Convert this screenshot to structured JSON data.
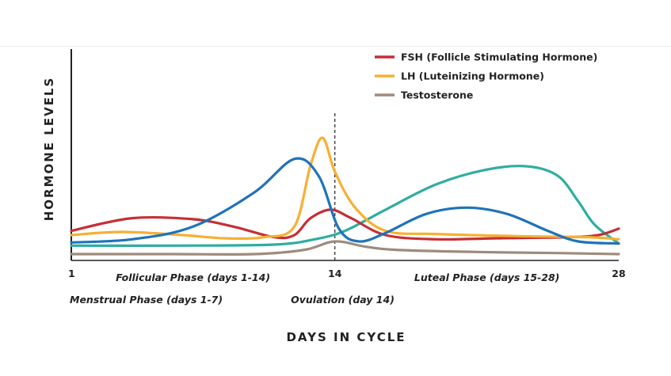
{
  "chart_data": {
    "type": "line",
    "xlabel": "DAYS IN CYCLE",
    "ylabel": "HORMONE LEVELS",
    "xlim": [
      1,
      28
    ],
    "ylim": [
      0,
      100
    ],
    "x_ticks": [
      "1",
      "14",
      "28"
    ],
    "ovulation_day": 14,
    "legend_position": "top-right",
    "phase_labels": [
      {
        "text": "Follicular Phase (days 1-14)",
        "x": 7.0,
        "row": 1
      },
      {
        "text": "Luteal Phase (days 15-28)",
        "x": 21.5,
        "row": 1
      },
      {
        "text": "Menstrual Phase (days 1-7)",
        "x": 1.0,
        "row": 2
      },
      {
        "text": "Ovulation (day 14)",
        "x": 13.0,
        "row": 2
      }
    ],
    "series": [
      {
        "name": "FSH (Follicle Stimulating Hormone)",
        "color": "#c62f36",
        "points": [
          [
            1,
            14
          ],
          [
            4,
            20
          ],
          [
            7,
            19.5
          ],
          [
            9,
            16
          ],
          [
            11,
            11
          ],
          [
            12,
            12
          ],
          [
            12.8,
            20
          ],
          [
            13.8,
            24
          ],
          [
            14.8,
            20
          ],
          [
            16.5,
            12
          ],
          [
            19,
            10
          ],
          [
            22,
            10.5
          ],
          [
            25.5,
            11
          ],
          [
            27,
            12
          ],
          [
            28,
            15
          ]
        ]
      },
      {
        "name": "LH (Luteinizing Hormone)",
        "color": "#f5b033",
        "points": [
          [
            1,
            12
          ],
          [
            3.5,
            13.5
          ],
          [
            6.5,
            12
          ],
          [
            8.5,
            10.5
          ],
          [
            10.5,
            11
          ],
          [
            12,
            16
          ],
          [
            12.8,
            45
          ],
          [
            13.4,
            58
          ],
          [
            14,
            42
          ],
          [
            15,
            25
          ],
          [
            16.5,
            14
          ],
          [
            19,
            12.5
          ],
          [
            23,
            11.5
          ],
          [
            26.5,
            11
          ],
          [
            28,
            10
          ]
        ]
      },
      {
        "name": "Testosterone",
        "color": "#9e8b7b",
        "points": [
          [
            1,
            3
          ],
          [
            6,
            3
          ],
          [
            10,
            3
          ],
          [
            12.5,
            5
          ],
          [
            14,
            9
          ],
          [
            15.5,
            6.5
          ],
          [
            17,
            5
          ],
          [
            21,
            4
          ],
          [
            25,
            3.5
          ],
          [
            28,
            3
          ]
        ]
      },
      {
        "name": "",
        "color": "#2fada1",
        "points": [
          [
            1,
            7
          ],
          [
            6,
            7
          ],
          [
            11,
            7.5
          ],
          [
            13,
            10
          ],
          [
            14.5,
            14
          ],
          [
            16.5,
            24
          ],
          [
            19,
            36
          ],
          [
            21.5,
            43
          ],
          [
            23.5,
            44.5
          ],
          [
            25,
            40
          ],
          [
            26,
            28
          ],
          [
            26.8,
            17
          ],
          [
            28,
            8
          ]
        ]
      },
      {
        "name": "",
        "color": "#1f73ba",
        "points": [
          [
            1,
            8.5
          ],
          [
            4,
            10
          ],
          [
            7,
            16
          ],
          [
            10,
            32
          ],
          [
            12,
            48
          ],
          [
            13.2,
            40
          ],
          [
            14.2,
            15
          ],
          [
            15.2,
            9
          ],
          [
            16.5,
            13
          ],
          [
            18.5,
            22
          ],
          [
            20.5,
            25
          ],
          [
            22.5,
            22
          ],
          [
            24.5,
            14
          ],
          [
            26,
            9
          ],
          [
            28,
            8
          ]
        ]
      }
    ]
  }
}
